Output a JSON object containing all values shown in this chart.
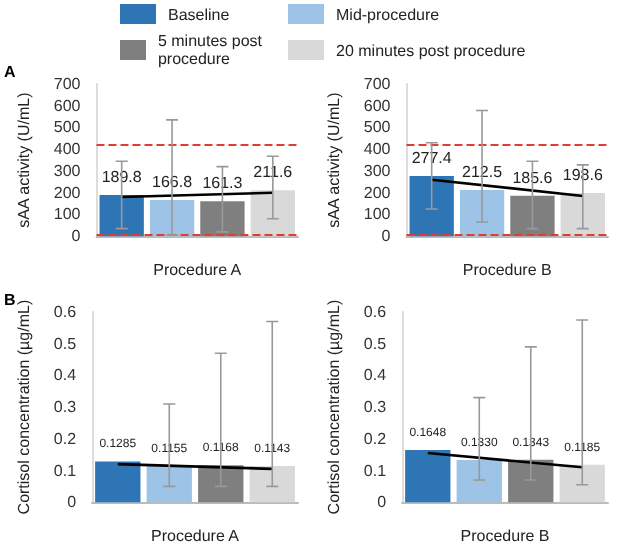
{
  "chart_data": [
    {
      "type": "bar",
      "stacked": true,
      "legend": "top",
      "grid": false,
      "ylabel": "sAA activity (U/mL)",
      "xlabel": "Procedure A",
      "annotations": [
        "A"
      ],
      "categories": [
        null,
        null,
        null,
        null
      ],
      "ylim": [
        0,
        700
      ],
      "yticks": [
        0,
        100,
        200,
        300,
        400,
        500,
        600,
        700
      ],
      "ref_lines": [
        {
          "axis": "y",
          "value": 425,
          "color": "#e03c31",
          "line_style": "dashed"
        },
        {
          "axis": "y",
          "value": 10,
          "color": "#e03c31",
          "line_style": "dashed"
        }
      ],
      "series": [
        {
          "name": "Baseline",
          "color": "#2e75b6",
          "values": [
            189.8,
            null,
            null,
            null
          ],
          "value_labels": [
            "189.8",
            null,
            null,
            null
          ],
          "errors": [
            [
              35,
              345
            ],
            null,
            null,
            null
          ]
        },
        {
          "name": "Mid-procedure",
          "color": "#9dc3e6",
          "values": [
            null,
            166.8,
            null,
            null
          ],
          "value_labels": [
            null,
            "166.8",
            null,
            null
          ],
          "errors": [
            null,
            [
              5,
              535
            ],
            null,
            null
          ]
        },
        {
          "name": "5 minutes post procedure",
          "color": "#7f7f7f",
          "values": [
            null,
            null,
            161.3,
            null
          ],
          "value_labels": [
            null,
            null,
            "161.3",
            null
          ],
          "errors": [
            null,
            null,
            [
              20,
              320
            ],
            null
          ]
        },
        {
          "name": "20 minutes post procedure",
          "color": "#d9d9d9",
          "values": [
            null,
            null,
            null,
            211.6
          ],
          "value_labels": [
            null,
            null,
            null,
            "211.6"
          ],
          "errors": [
            null,
            null,
            null,
            [
              80,
              368
            ]
          ]
        },
        {
          "type": "line",
          "color": "#000000",
          "values": [
            180,
            null,
            null,
            200
          ]
        }
      ]
    },
    {
      "type": "bar",
      "stacked": true,
      "grid": false,
      "ylabel": "sAA activity (U/mL)",
      "xlabel": "Procedure B",
      "categories": [
        null,
        null,
        null,
        null
      ],
      "ylim": [
        0,
        700
      ],
      "yticks": [
        0,
        100,
        200,
        300,
        400,
        500,
        600,
        700
      ],
      "ref_lines": [
        {
          "axis": "y",
          "value": 425,
          "color": "#e03c31",
          "line_style": "dashed"
        },
        {
          "axis": "y",
          "value": 10,
          "color": "#e03c31",
          "line_style": "dashed"
        }
      ],
      "series": [
        {
          "color": "#2e75b6",
          "values": [
            277.4,
            null,
            null,
            null
          ],
          "value_labels": [
            "277.4",
            null,
            null,
            null
          ],
          "errors": [
            [
              125,
              430
            ],
            null,
            null,
            null
          ]
        },
        {
          "color": "#9dc3e6",
          "values": [
            null,
            212.5,
            null,
            null
          ],
          "value_labels": [
            null,
            "212.5",
            null,
            null
          ],
          "errors": [
            null,
            [
              65,
              578
            ],
            null,
            null
          ]
        },
        {
          "color": "#7f7f7f",
          "values": [
            null,
            null,
            185.6,
            null
          ],
          "value_labels": [
            null,
            null,
            "185.6",
            null
          ],
          "errors": [
            null,
            null,
            [
              35,
              345
            ],
            null
          ]
        },
        {
          "color": "#d9d9d9",
          "values": [
            null,
            null,
            null,
            198.6
          ],
          "value_labels": [
            null,
            null,
            null,
            "198.6"
          ],
          "errors": [
            null,
            null,
            null,
            [
              35,
              328
            ]
          ]
        },
        {
          "type": "line",
          "color": "#000000",
          "values": [
            260,
            null,
            null,
            185
          ]
        }
      ]
    },
    {
      "type": "bar",
      "stacked": true,
      "grid": false,
      "ylabel": "Cortisol concentration (µg/mL)",
      "xlabel": "Procedure A",
      "annotations": [
        "B"
      ],
      "categories": [
        null,
        null,
        null,
        null
      ],
      "ylim": [
        0,
        0.6
      ],
      "yticks": [
        0,
        0.1,
        0.2,
        0.3,
        0.4,
        0.5,
        0.6
      ],
      "series": [
        {
          "color": "#2e75b6",
          "values": [
            0.1285,
            null,
            null,
            null
          ],
          "value_labels": [
            "0.1285",
            null,
            null,
            null
          ]
        },
        {
          "color": "#9dc3e6",
          "values": [
            null,
            0.1155,
            null,
            null
          ],
          "value_labels": [
            null,
            "0.1155",
            null,
            null
          ],
          "errors": [
            null,
            [
              0.05,
              0.31
            ],
            null,
            null
          ]
        },
        {
          "color": "#7f7f7f",
          "values": [
            null,
            null,
            0.1168,
            null
          ],
          "value_labels": [
            null,
            null,
            "0.1168",
            null
          ],
          "errors": [
            null,
            null,
            [
              0.05,
              0.47
            ],
            null
          ]
        },
        {
          "color": "#d9d9d9",
          "values": [
            null,
            null,
            null,
            0.1143
          ],
          "value_labels": [
            null,
            null,
            null,
            "0.1143"
          ],
          "errors": [
            null,
            null,
            null,
            [
              0.05,
              0.57
            ]
          ]
        },
        {
          "type": "line",
          "color": "#000000",
          "values": [
            0.12,
            null,
            null,
            0.105
          ]
        }
      ]
    },
    {
      "type": "bar",
      "stacked": true,
      "grid": false,
      "ylabel": "Cortisol concentration (µg/mL)",
      "xlabel": "Procedure B",
      "categories": [
        null,
        null,
        null,
        null
      ],
      "ylim": [
        0,
        0.6
      ],
      "yticks": [
        0,
        0.1,
        0.2,
        0.3,
        0.4,
        0.5,
        0.6
      ],
      "series": [
        {
          "color": "#2e75b6",
          "values": [
            0.1648,
            null,
            null,
            null
          ],
          "value_labels": [
            "0.1648",
            null,
            null,
            null
          ]
        },
        {
          "color": "#9dc3e6",
          "values": [
            null,
            0.133,
            null,
            null
          ],
          "value_labels": [
            null,
            "0.1330",
            null,
            null
          ],
          "errors": [
            null,
            [
              0.07,
              0.33
            ],
            null,
            null
          ]
        },
        {
          "color": "#7f7f7f",
          "values": [
            null,
            null,
            0.1343,
            null
          ],
          "value_labels": [
            null,
            null,
            "0.1343",
            null
          ],
          "errors": [
            null,
            null,
            [
              0.07,
              0.49
            ],
            null
          ]
        },
        {
          "color": "#d9d9d9",
          "values": [
            null,
            null,
            null,
            0.1185
          ],
          "value_labels": [
            null,
            null,
            null,
            "0.1185"
          ],
          "errors": [
            null,
            null,
            null,
            [
              0.055,
              0.575
            ]
          ]
        },
        {
          "type": "line",
          "color": "#000000",
          "values": [
            0.155,
            null,
            null,
            0.11
          ]
        }
      ]
    }
  ]
}
